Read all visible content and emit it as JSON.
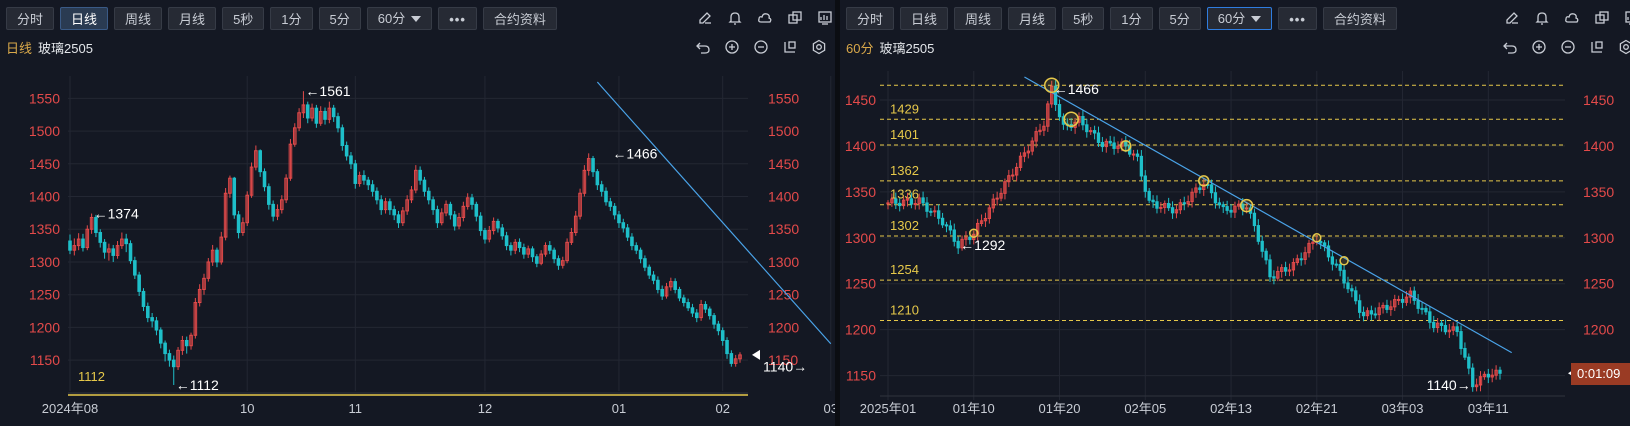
{
  "colors": {
    "up": "#e34a4a",
    "down": "#1fbfc9",
    "trend": "#4aa3e8",
    "level": "#e6c84a",
    "axis": "#e34a4a",
    "grid": "#232733",
    "bg": "#141823"
  },
  "left": {
    "toolbar": [
      {
        "label": "分时",
        "active": false
      },
      {
        "label": "日线",
        "active": true
      },
      {
        "label": "周线",
        "active": false
      },
      {
        "label": "月线",
        "active": false
      },
      {
        "label": "5秒",
        "active": false
      },
      {
        "label": "1分",
        "active": false
      },
      {
        "label": "5分",
        "active": false
      }
    ],
    "period_select": "60分",
    "more_label": "•••",
    "contract_label": "合约资料",
    "period_label": "日线",
    "symbol": "玻璃2505",
    "icons_top": [
      "edit-icon",
      "bell-icon",
      "cloud-icon",
      "copy-icon",
      "monitor-icon"
    ],
    "icons_title": [
      "undo-icon",
      "zoom-in-icon",
      "zoom-out-icon",
      "layout-icon",
      "settings-icon"
    ],
    "chart_data": {
      "type": "candlestick",
      "ylim": [
        1112,
        1575
      ],
      "yticks": [
        1150,
        1200,
        1250,
        1300,
        1350,
        1400,
        1450,
        1500,
        1550
      ],
      "xticks": [
        {
          "label": "2024年08",
          "i": 0
        },
        {
          "label": "10",
          "i": 41
        },
        {
          "label": "11",
          "i": 66
        },
        {
          "label": "12",
          "i": 96
        },
        {
          "label": "01",
          "i": 127
        },
        {
          "label": "02",
          "i": 151
        },
        {
          "label": "03",
          "i": 176
        }
      ],
      "candles": [
        [
          1332,
          1318,
          1342,
          1312
        ],
        [
          1318,
          1325,
          1336,
          1310
        ],
        [
          1325,
          1335,
          1344,
          1318
        ],
        [
          1335,
          1322,
          1343,
          1316
        ],
        [
          1322,
          1350,
          1356,
          1318
        ],
        [
          1350,
          1368,
          1374,
          1343
        ],
        [
          1368,
          1345,
          1372,
          1338
        ],
        [
          1345,
          1330,
          1350,
          1322
        ],
        [
          1330,
          1315,
          1335,
          1305
        ],
        [
          1315,
          1320,
          1328,
          1302
        ],
        [
          1320,
          1310,
          1326,
          1300
        ],
        [
          1310,
          1325,
          1332,
          1305
        ],
        [
          1325,
          1335,
          1345,
          1320
        ],
        [
          1335,
          1328,
          1343,
          1315
        ],
        [
          1328,
          1302,
          1333,
          1297
        ],
        [
          1302,
          1280,
          1308,
          1274
        ],
        [
          1280,
          1255,
          1285,
          1248
        ],
        [
          1255,
          1232,
          1260,
          1225
        ],
        [
          1232,
          1215,
          1238,
          1208
        ],
        [
          1215,
          1210,
          1222,
          1200
        ],
        [
          1210,
          1196,
          1216,
          1188
        ],
        [
          1196,
          1176,
          1200,
          1168
        ],
        [
          1176,
          1160,
          1180,
          1148
        ],
        [
          1160,
          1150,
          1166,
          1140
        ],
        [
          1150,
          1140,
          1157,
          1112
        ],
        [
          1140,
          1165,
          1170,
          1135
        ],
        [
          1165,
          1180,
          1187,
          1158
        ],
        [
          1180,
          1172,
          1186,
          1160
        ],
        [
          1172,
          1188,
          1192,
          1166
        ],
        [
          1188,
          1238,
          1245,
          1183
        ],
        [
          1238,
          1258,
          1266,
          1232
        ],
        [
          1258,
          1275,
          1282,
          1250
        ],
        [
          1275,
          1300,
          1306,
          1270
        ],
        [
          1300,
          1318,
          1326,
          1294
        ],
        [
          1318,
          1300,
          1322,
          1292
        ],
        [
          1300,
          1338,
          1346,
          1296
        ],
        [
          1338,
          1405,
          1413,
          1333
        ],
        [
          1405,
          1428,
          1432,
          1398
        ],
        [
          1428,
          1372,
          1430,
          1366
        ],
        [
          1372,
          1345,
          1378,
          1336
        ],
        [
          1345,
          1360,
          1368,
          1340
        ],
        [
          1360,
          1402,
          1408,
          1355
        ],
        [
          1402,
          1445,
          1452,
          1398
        ],
        [
          1445,
          1470,
          1478,
          1440
        ],
        [
          1470,
          1438,
          1472,
          1430
        ],
        [
          1438,
          1415,
          1443,
          1408
        ],
        [
          1415,
          1388,
          1420,
          1380
        ],
        [
          1388,
          1370,
          1394,
          1362
        ],
        [
          1370,
          1380,
          1388,
          1364
        ],
        [
          1380,
          1395,
          1402,
          1374
        ],
        [
          1395,
          1428,
          1434,
          1390
        ],
        [
          1428,
          1480,
          1488,
          1424
        ],
        [
          1480,
          1505,
          1512,
          1476
        ],
        [
          1505,
          1528,
          1535,
          1500
        ],
        [
          1528,
          1540,
          1561,
          1520
        ],
        [
          1540,
          1520,
          1545,
          1512
        ],
        [
          1520,
          1535,
          1542,
          1515
        ],
        [
          1535,
          1512,
          1540,
          1505
        ],
        [
          1512,
          1530,
          1538,
          1508
        ],
        [
          1530,
          1518,
          1536,
          1510
        ],
        [
          1518,
          1535,
          1545,
          1512
        ],
        [
          1535,
          1522,
          1540,
          1514
        ],
        [
          1522,
          1505,
          1528,
          1498
        ],
        [
          1505,
          1478,
          1510,
          1470
        ],
        [
          1478,
          1462,
          1484,
          1455
        ],
        [
          1462,
          1450,
          1468,
          1442
        ],
        [
          1450,
          1420,
          1456,
          1412
        ],
        [
          1420,
          1432,
          1438,
          1415
        ],
        [
          1432,
          1425,
          1440,
          1418
        ],
        [
          1425,
          1418,
          1430,
          1410
        ],
        [
          1418,
          1408,
          1425,
          1400
        ],
        [
          1408,
          1395,
          1414,
          1388
        ],
        [
          1395,
          1380,
          1402,
          1372
        ],
        [
          1380,
          1392,
          1398,
          1374
        ],
        [
          1392,
          1380,
          1397,
          1372
        ],
        [
          1380,
          1372,
          1386,
          1364
        ],
        [
          1372,
          1360,
          1378,
          1352
        ],
        [
          1360,
          1378,
          1384,
          1355
        ],
        [
          1378,
          1395,
          1402,
          1372
        ],
        [
          1395,
          1410,
          1416,
          1390
        ],
        [
          1410,
          1440,
          1448,
          1405
        ],
        [
          1440,
          1425,
          1446,
          1418
        ],
        [
          1425,
          1408,
          1430,
          1400
        ],
        [
          1408,
          1395,
          1414,
          1388
        ],
        [
          1395,
          1380,
          1400,
          1372
        ],
        [
          1380,
          1360,
          1386,
          1352
        ],
        [
          1360,
          1375,
          1382,
          1356
        ],
        [
          1375,
          1388,
          1394,
          1370
        ],
        [
          1388,
          1372,
          1392,
          1365
        ],
        [
          1372,
          1355,
          1378,
          1348
        ],
        [
          1355,
          1368,
          1375,
          1350
        ],
        [
          1368,
          1385,
          1392,
          1362
        ],
        [
          1385,
          1398,
          1405,
          1380
        ],
        [
          1398,
          1388,
          1404,
          1380
        ],
        [
          1388,
          1370,
          1392,
          1362
        ],
        [
          1370,
          1348,
          1376,
          1340
        ],
        [
          1348,
          1335,
          1352,
          1328
        ],
        [
          1335,
          1348,
          1355,
          1330
        ],
        [
          1348,
          1362,
          1368,
          1342
        ],
        [
          1362,
          1352,
          1366,
          1345
        ],
        [
          1352,
          1340,
          1358,
          1334
        ],
        [
          1340,
          1325,
          1346,
          1318
        ],
        [
          1325,
          1318,
          1330,
          1310
        ],
        [
          1318,
          1330,
          1335,
          1312
        ],
        [
          1330,
          1322,
          1336,
          1315
        ],
        [
          1322,
          1312,
          1328,
          1305
        ],
        [
          1312,
          1320,
          1325,
          1306
        ],
        [
          1320,
          1308,
          1324,
          1300
        ],
        [
          1308,
          1298,
          1312,
          1292
        ],
        [
          1298,
          1312,
          1318,
          1295
        ],
        [
          1312,
          1325,
          1330,
          1308
        ],
        [
          1325,
          1318,
          1332,
          1312
        ],
        [
          1318,
          1305,
          1322,
          1298
        ],
        [
          1305,
          1295,
          1310,
          1288
        ],
        [
          1295,
          1302,
          1308,
          1290
        ],
        [
          1302,
          1330,
          1336,
          1298
        ],
        [
          1330,
          1345,
          1352,
          1326
        ],
        [
          1345,
          1370,
          1378,
          1340
        ],
        [
          1370,
          1405,
          1412,
          1365
        ],
        [
          1405,
          1440,
          1448,
          1400
        ],
        [
          1440,
          1458,
          1466,
          1432
        ],
        [
          1458,
          1438,
          1462,
          1430
        ],
        [
          1438,
          1418,
          1442,
          1410
        ],
        [
          1418,
          1408,
          1424,
          1400
        ],
        [
          1408,
          1392,
          1414,
          1386
        ],
        [
          1392,
          1385,
          1398,
          1378
        ],
        [
          1385,
          1372,
          1390,
          1365
        ],
        [
          1372,
          1360,
          1378,
          1352
        ],
        [
          1360,
          1352,
          1366,
          1345
        ],
        [
          1352,
          1338,
          1358,
          1332
        ],
        [
          1338,
          1325,
          1344,
          1318
        ],
        [
          1325,
          1318,
          1330,
          1312
        ],
        [
          1318,
          1305,
          1322,
          1298
        ],
        [
          1305,
          1292,
          1310,
          1286
        ],
        [
          1292,
          1280,
          1296,
          1274
        ],
        [
          1280,
          1272,
          1286,
          1266
        ],
        [
          1272,
          1258,
          1278,
          1252
        ],
        [
          1258,
          1248,
          1264,
          1242
        ],
        [
          1248,
          1262,
          1268,
          1244
        ],
        [
          1262,
          1270,
          1276,
          1256
        ],
        [
          1270,
          1258,
          1275,
          1252
        ],
        [
          1258,
          1245,
          1262,
          1240
        ],
        [
          1245,
          1238,
          1250,
          1232
        ],
        [
          1238,
          1230,
          1244,
          1225
        ],
        [
          1230,
          1222,
          1236,
          1216
        ],
        [
          1222,
          1215,
          1228,
          1208
        ],
        [
          1215,
          1235,
          1242,
          1210
        ],
        [
          1235,
          1228,
          1240,
          1222
        ],
        [
          1228,
          1218,
          1232,
          1212
        ],
        [
          1218,
          1205,
          1222,
          1198
        ],
        [
          1205,
          1195,
          1210,
          1188
        ],
        [
          1195,
          1180,
          1200,
          1172
        ],
        [
          1180,
          1160,
          1185,
          1152
        ],
        [
          1160,
          1145,
          1165,
          1140
        ],
        [
          1145,
          1152,
          1158,
          1140
        ],
        [
          1152,
          1158,
          1162,
          1146
        ]
      ],
      "annotations": [
        {
          "text": "←1374",
          "i": 5,
          "price": 1374,
          "side": "right"
        },
        {
          "text": "←1561",
          "i": 54,
          "price": 1561,
          "side": "right"
        },
        {
          "text": "←1466",
          "i": 125,
          "price": 1466,
          "side": "right"
        },
        {
          "text": "←1112",
          "i": 24,
          "price": 1112,
          "side": "right"
        },
        {
          "text": "1140→",
          "i": 171,
          "price": 1140,
          "side": "left"
        }
      ],
      "level_line": {
        "label": "1112",
        "price": 1112
      },
      "trendline": {
        "i1": 122,
        "p1": 1575,
        "i2": 176,
        "p2": 1175
      }
    }
  },
  "right": {
    "toolbar": [
      {
        "label": "分时",
        "active": false
      },
      {
        "label": "日线",
        "active": false
      },
      {
        "label": "周线",
        "active": false
      },
      {
        "label": "月线",
        "active": false
      },
      {
        "label": "5秒",
        "active": false
      },
      {
        "label": "1分",
        "active": false
      },
      {
        "label": "5分",
        "active": false
      }
    ],
    "period_select": "60分",
    "more_label": "•••",
    "contract_label": "合约资料",
    "period_label": "60分",
    "symbol": "玻璃2505",
    "timer": "0:01:09",
    "chart_data": {
      "type": "candlestick",
      "ylim": [
        1130,
        1475
      ],
      "yticks": [
        1150,
        1200,
        1250,
        1300,
        1350,
        1400,
        1450
      ],
      "xticks": [
        {
          "label": "2025年01",
          "i": 0
        },
        {
          "label": "01年10",
          "i": 22
        },
        {
          "label": "01年20",
          "i": 44
        },
        {
          "label": "02年05",
          "i": 66
        },
        {
          "label": "02年13",
          "i": 88
        },
        {
          "label": "02年21",
          "i": 110
        },
        {
          "label": "03年03",
          "i": 132
        },
        {
          "label": "03年11",
          "i": 154
        }
      ],
      "levels": [
        {
          "label": "",
          "price": 1466
        },
        {
          "label": "1429",
          "price": 1429
        },
        {
          "label": "1401",
          "price": 1401
        },
        {
          "label": "1362",
          "price": 1362
        },
        {
          "label": "1336",
          "price": 1336
        },
        {
          "label": "1302",
          "price": 1302
        },
        {
          "label": "1254",
          "price": 1254
        },
        {
          "label": "1210",
          "price": 1210
        }
      ],
      "annotations": [
        {
          "text": "←1466",
          "i": 42,
          "price": 1462,
          "side": "right"
        },
        {
          "text": "←1292",
          "i": 18,
          "price": 1292,
          "side": "right"
        },
        {
          "text": "1140→",
          "i": 150,
          "price": 1140,
          "side": "left"
        }
      ],
      "circles": [
        {
          "i": 42,
          "price": 1466,
          "r": 7
        },
        {
          "i": 47,
          "price": 1429,
          "r": 7
        },
        {
          "i": 61,
          "price": 1400,
          "r": 5
        },
        {
          "i": 81,
          "price": 1362,
          "r": 5
        },
        {
          "i": 92,
          "price": 1335,
          "r": 6
        },
        {
          "i": 110,
          "price": 1300,
          "r": 4
        },
        {
          "i": 117,
          "price": 1275,
          "r": 4
        },
        {
          "i": 22,
          "price": 1305,
          "r": 4
        }
      ],
      "trendline": {
        "i1": 35,
        "p1": 1475,
        "i2": 160,
        "p2": 1175
      }
    }
  }
}
